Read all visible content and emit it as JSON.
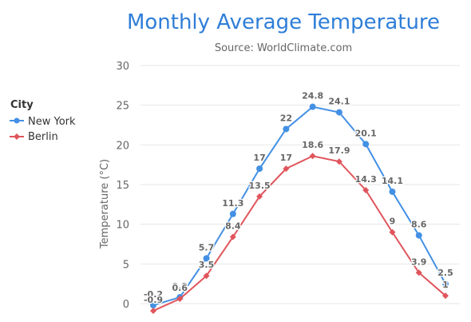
{
  "chart_data": {
    "type": "line",
    "title": "Monthly Average Temperature",
    "subtitle": "Source: WorldClimate.com",
    "xlabel": "",
    "ylabel": "Temperature (°C)",
    "ylim": [
      0,
      30
    ],
    "yticks": [
      0,
      5,
      10,
      15,
      20,
      25,
      30
    ],
    "grid": true,
    "legend": {
      "title": "City",
      "placement": "left"
    },
    "x": [
      1,
      2,
      3,
      4,
      5,
      6,
      7,
      8,
      9,
      10,
      11,
      12
    ],
    "series": [
      {
        "name": "New York",
        "color": "#4390e4",
        "marker": "circle",
        "values": [
          -0.2,
          0.8,
          5.7,
          11.3,
          17,
          22,
          24.8,
          24.1,
          20.1,
          14.1,
          8.6,
          2.5
        ],
        "labels": [
          "-0.2",
          "0.8",
          "5.7",
          "11.3",
          "17",
          "22",
          "24.8",
          "24.1",
          "20.1",
          "14.1",
          "8.6",
          "2.5"
        ]
      },
      {
        "name": "Berlin",
        "color": "#e0555c",
        "marker": "diamond",
        "values": [
          -0.9,
          0.6,
          3.5,
          8.4,
          13.5,
          17,
          18.6,
          17.9,
          14.3,
          9,
          3.9,
          1
        ],
        "labels": [
          "-0.9",
          "0.6",
          "3.5",
          "8.4",
          "13.5",
          "17",
          "18.6",
          "17.9",
          "14.3",
          "9",
          "3.9",
          "1"
        ]
      }
    ]
  }
}
